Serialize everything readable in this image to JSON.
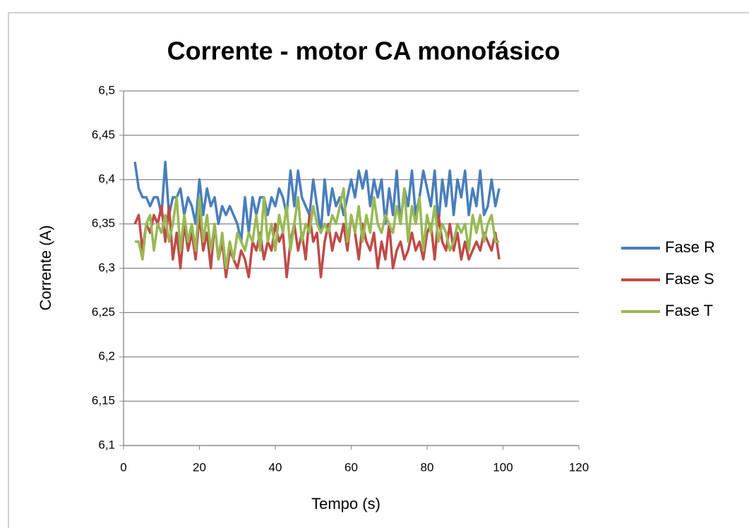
{
  "chart_data": {
    "type": "line",
    "title": "Corrente - motor CA monofásico",
    "x_label": "Tempo (s)",
    "y_label": "Corrente (A)",
    "x": [
      3,
      4,
      5,
      6,
      7,
      8,
      9,
      10,
      11,
      12,
      13,
      14,
      15,
      16,
      17,
      18,
      19,
      20,
      21,
      22,
      23,
      24,
      25,
      26,
      27,
      28,
      29,
      30,
      31,
      32,
      33,
      34,
      35,
      36,
      37,
      38,
      39,
      40,
      41,
      42,
      43,
      44,
      45,
      46,
      47,
      48,
      49,
      50,
      51,
      52,
      53,
      54,
      55,
      56,
      57,
      58,
      59,
      60,
      61,
      62,
      63,
      64,
      65,
      66,
      67,
      68,
      69,
      70,
      71,
      72,
      73,
      74,
      75,
      76,
      77,
      78,
      79,
      80,
      81,
      82,
      83,
      84,
      85,
      86,
      87,
      88,
      89,
      90,
      91,
      92,
      93,
      94,
      95,
      96,
      97,
      98,
      99
    ],
    "series": [
      {
        "name": "Fase R",
        "color": "#4a7ebb",
        "values": [
          6.42,
          6.39,
          6.38,
          6.38,
          6.37,
          6.38,
          6.38,
          6.36,
          6.42,
          6.36,
          6.38,
          6.38,
          6.39,
          6.36,
          6.38,
          6.37,
          6.35,
          6.4,
          6.36,
          6.39,
          6.37,
          6.38,
          6.35,
          6.37,
          6.36,
          6.37,
          6.36,
          6.35,
          6.33,
          6.38,
          6.34,
          6.38,
          6.36,
          6.38,
          6.38,
          6.36,
          6.38,
          6.37,
          6.39,
          6.38,
          6.36,
          6.41,
          6.37,
          6.41,
          6.38,
          6.37,
          6.36,
          6.4,
          6.37,
          6.34,
          6.4,
          6.36,
          6.39,
          6.37,
          6.38,
          6.36,
          6.38,
          6.4,
          6.38,
          6.41,
          6.39,
          6.41,
          6.37,
          6.4,
          6.38,
          6.4,
          6.35,
          6.39,
          6.36,
          6.41,
          6.35,
          6.39,
          6.37,
          6.41,
          6.36,
          6.38,
          6.41,
          6.39,
          6.37,
          6.41,
          6.35,
          6.4,
          6.37,
          6.41,
          6.36,
          6.4,
          6.38,
          6.41,
          6.36,
          6.39,
          6.37,
          6.41,
          6.36,
          6.37,
          6.4,
          6.37,
          6.39
        ]
      },
      {
        "name": "Fase S",
        "color": "#be4b48",
        "values": [
          6.35,
          6.36,
          6.32,
          6.35,
          6.34,
          6.36,
          6.35,
          6.37,
          6.33,
          6.37,
          6.31,
          6.34,
          6.3,
          6.35,
          6.32,
          6.34,
          6.31,
          6.36,
          6.32,
          6.34,
          6.3,
          6.35,
          6.31,
          6.33,
          6.29,
          6.32,
          6.31,
          6.3,
          6.32,
          6.31,
          6.29,
          6.33,
          6.32,
          6.34,
          6.31,
          6.33,
          6.32,
          6.35,
          6.33,
          6.34,
          6.29,
          6.33,
          6.35,
          6.32,
          6.34,
          6.31,
          6.36,
          6.33,
          6.34,
          6.29,
          6.33,
          6.35,
          6.32,
          6.34,
          6.33,
          6.35,
          6.32,
          6.36,
          6.34,
          6.31,
          6.35,
          6.33,
          6.32,
          6.34,
          6.3,
          6.33,
          6.31,
          6.35,
          6.3,
          6.32,
          6.33,
          6.31,
          6.32,
          6.34,
          6.32,
          6.33,
          6.31,
          6.34,
          6.35,
          6.31,
          6.36,
          6.33,
          6.32,
          6.35,
          6.32,
          6.34,
          6.31,
          6.33,
          6.31,
          6.32,
          6.33,
          6.32,
          6.34,
          6.33,
          6.32,
          6.34,
          6.31
        ]
      },
      {
        "name": "Fase T",
        "color": "#98b954",
        "values": [
          6.33,
          6.33,
          6.31,
          6.35,
          6.36,
          6.32,
          6.35,
          6.34,
          6.36,
          6.33,
          6.35,
          6.38,
          6.32,
          6.36,
          6.33,
          6.35,
          6.32,
          6.38,
          6.33,
          6.36,
          6.32,
          6.35,
          6.31,
          6.34,
          6.3,
          6.33,
          6.31,
          6.34,
          6.33,
          6.32,
          6.34,
          6.33,
          6.36,
          6.32,
          6.38,
          6.33,
          6.35,
          6.32,
          6.36,
          6.34,
          6.37,
          6.32,
          6.35,
          6.38,
          6.33,
          6.35,
          6.34,
          6.37,
          6.35,
          6.34,
          6.35,
          6.34,
          6.36,
          6.35,
          6.37,
          6.39,
          6.33,
          6.36,
          6.34,
          6.37,
          6.33,
          6.36,
          6.34,
          6.38,
          6.35,
          6.34,
          6.36,
          6.35,
          6.34,
          6.37,
          6.35,
          6.39,
          6.33,
          6.37,
          6.35,
          6.38,
          6.32,
          6.36,
          6.34,
          6.37,
          6.33,
          6.35,
          6.34,
          6.32,
          6.33,
          6.35,
          6.34,
          6.35,
          6.32,
          6.36,
          6.34,
          6.36,
          6.33,
          6.35,
          6.36,
          6.33,
          6.33
        ]
      }
    ],
    "xlim": [
      0,
      120
    ],
    "xticks": [
      0,
      20,
      40,
      60,
      80,
      100,
      120
    ],
    "ylim": [
      6.1,
      6.5
    ],
    "yticks": [
      {
        "value": 6.1,
        "label": "6,1"
      },
      {
        "value": 6.15,
        "label": "6,15"
      },
      {
        "value": 6.2,
        "label": "6,2"
      },
      {
        "value": 6.25,
        "label": "6,25"
      },
      {
        "value": 6.3,
        "label": "6,3"
      },
      {
        "value": 6.35,
        "label": "6,35"
      },
      {
        "value": 6.4,
        "label": "6,4"
      },
      {
        "value": 6.45,
        "label": "6,45"
      },
      {
        "value": 6.5,
        "label": "6,5"
      }
    ],
    "grid": true,
    "legend": "right"
  }
}
